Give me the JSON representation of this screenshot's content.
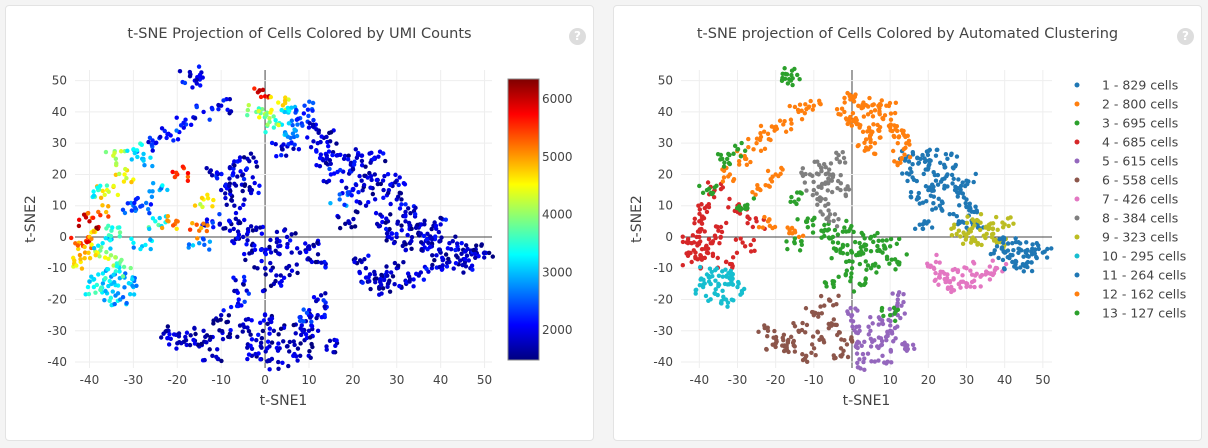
{
  "chart_data": [
    {
      "type": "scatter",
      "title": "t-SNE Projection of Cells Colored by UMI Counts",
      "xlabel": "t-SNE1",
      "ylabel": "t-SNE2",
      "xlim": [
        -43.3,
        51.7
      ],
      "ylim": [
        -41.9,
        53.4
      ],
      "xticks": [
        -40,
        -30,
        -20,
        -10,
        0,
        10,
        20,
        30,
        40,
        50
      ],
      "yticks": [
        -40,
        -30,
        -20,
        -10,
        0,
        10,
        20,
        30,
        40,
        50
      ],
      "grid": true,
      "color_by": "umi",
      "colorscale": "jet",
      "colorbar": {
        "range": [
          1480,
          6350
        ],
        "ticks": [
          2000,
          3000,
          4000,
          5000,
          6000
        ]
      }
    },
    {
      "type": "scatter",
      "title": "t-SNE projection of Cells Colored by Automated Clustering",
      "xlabel": "t-SNE1",
      "ylabel": "t-SNE2",
      "xlim": [
        -44.8,
        52.4
      ],
      "ylim": [
        -41.9,
        53.4
      ],
      "xticks": [
        -40,
        -30,
        -20,
        -10,
        0,
        10,
        20,
        30,
        40,
        50
      ],
      "yticks": [
        -40,
        -30,
        -20,
        -10,
        0,
        10,
        20,
        30,
        40,
        50
      ],
      "grid": true,
      "color_by": "cluster",
      "legend_position": "right"
    }
  ],
  "clusters": [
    {
      "label": "1 - 829 cells",
      "color": "#1f77b4",
      "points": [
        [
          18,
          25,
          1800
        ],
        [
          20,
          22,
          1900
        ],
        [
          22,
          26,
          1800
        ],
        [
          25,
          20,
          1700
        ],
        [
          27,
          15,
          1800
        ],
        [
          30,
          12,
          1900
        ],
        [
          32,
          8,
          1800
        ],
        [
          20,
          15,
          2000
        ],
        [
          23,
          10,
          1800
        ],
        [
          28,
          5,
          1700
        ],
        [
          15,
          20,
          2100
        ],
        [
          25,
          25,
          1800
        ],
        [
          30,
          18,
          1900
        ],
        [
          33,
          3,
          1800
        ],
        [
          22,
          18,
          1800
        ],
        [
          17,
          12,
          2600
        ],
        [
          14,
          25,
          1900
        ],
        [
          19,
          5,
          1800
        ]
      ]
    },
    {
      "label": "2 - 800 cells",
      "color": "#ff7f0e",
      "points": [
        [
          0,
          45,
          5800
        ],
        [
          3,
          43,
          4500
        ],
        [
          5,
          40,
          3200
        ],
        [
          8,
          38,
          2500
        ],
        [
          2,
          35,
          3500
        ],
        [
          10,
          35,
          2000
        ],
        [
          12,
          30,
          1900
        ],
        [
          6,
          30,
          2200
        ],
        [
          14,
          32,
          1800
        ],
        [
          -2,
          40,
          3800
        ],
        [
          4,
          28,
          2000
        ],
        [
          9,
          42,
          2400
        ],
        [
          13,
          25,
          1800
        ],
        [
          1,
          38,
          4200
        ],
        [
          7,
          34,
          2800
        ]
      ]
    },
    {
      "label": "3 - 695 cells",
      "color": "#2ca02c",
      "points": [
        [
          -5,
          0,
          1800
        ],
        [
          -3,
          -5,
          1800
        ],
        [
          0,
          -10,
          1900
        ],
        [
          2,
          -15,
          1800
        ],
        [
          5,
          -10,
          1700
        ],
        [
          -8,
          2,
          1900
        ],
        [
          -12,
          5,
          2100
        ],
        [
          8,
          -5,
          1800
        ],
        [
          10,
          -3,
          1800
        ],
        [
          -15,
          -2,
          2800
        ],
        [
          5,
          0,
          1800
        ],
        [
          0,
          -5,
          1800
        ],
        [
          -5,
          -15,
          1900
        ],
        [
          12,
          -8,
          1800
        ],
        [
          -2,
          3,
          1800
        ],
        [
          3,
          -3,
          1900
        ]
      ]
    },
    {
      "label": "4 - 685 cells",
      "color": "#d62728",
      "points": [
        [
          -42,
          -2,
          5500
        ],
        [
          -40,
          0,
          4800
        ],
        [
          -38,
          -5,
          4200
        ],
        [
          -35,
          2,
          3600
        ],
        [
          -38,
          8,
          5200
        ],
        [
          -36,
          15,
          4500
        ],
        [
          -40,
          5,
          6000
        ],
        [
          -33,
          -8,
          3800
        ],
        [
          -28,
          -3,
          3000
        ],
        [
          -25,
          5,
          3400
        ],
        [
          -30,
          10,
          2600
        ],
        [
          -42,
          -8,
          4600
        ],
        [
          -37,
          -2,
          3200
        ],
        [
          -41,
          -5,
          5000
        ]
      ]
    },
    {
      "label": "5 - 615 cells",
      "color": "#9467bd",
      "points": [
        [
          0,
          -25,
          1800
        ],
        [
          2,
          -30,
          1700
        ],
        [
          5,
          -35,
          1800
        ],
        [
          8,
          -38,
          1700
        ],
        [
          10,
          -30,
          1800
        ],
        [
          12,
          -25,
          1900
        ],
        [
          14,
          -35,
          1800
        ],
        [
          3,
          -40,
          1700
        ],
        [
          7,
          -28,
          1800
        ],
        [
          12,
          -20,
          2000
        ],
        [
          1,
          -35,
          1800
        ],
        [
          9,
          -33,
          1700
        ]
      ]
    },
    {
      "label": "6 - 558 cells",
      "color": "#8c564b",
      "points": [
        [
          -22,
          -30,
          1800
        ],
        [
          -18,
          -33,
          1700
        ],
        [
          -15,
          -35,
          1800
        ],
        [
          -12,
          -38,
          1700
        ],
        [
          -8,
          -32,
          1800
        ],
        [
          -5,
          -28,
          1900
        ],
        [
          -3,
          -38,
          1700
        ],
        [
          -10,
          -25,
          1800
        ],
        [
          -6,
          -20,
          2100
        ],
        [
          -14,
          -30,
          1800
        ],
        [
          -2,
          -33,
          1800
        ],
        [
          -20,
          -34,
          1700
        ]
      ]
    },
    {
      "label": "7 - 426 cells",
      "color": "#e377c2",
      "points": [
        [
          22,
          -8,
          1800
        ],
        [
          25,
          -12,
          1800
        ],
        [
          28,
          -15,
          1700
        ],
        [
          32,
          -14,
          1800
        ],
        [
          35,
          -12,
          1800
        ],
        [
          38,
          -10,
          1900
        ],
        [
          30,
          -10,
          1800
        ],
        [
          26,
          -16,
          1700
        ],
        [
          23,
          -13,
          2000
        ]
      ]
    },
    {
      "label": "8 - 384 cells",
      "color": "#7f7f7f",
      "points": [
        [
          -8,
          22,
          1800
        ],
        [
          -5,
          20,
          1900
        ],
        [
          -3,
          15,
          1800
        ],
        [
          -10,
          15,
          1800
        ],
        [
          -7,
          10,
          1700
        ],
        [
          -4,
          25,
          1800
        ],
        [
          -11,
          20,
          2000
        ],
        [
          -6,
          5,
          1800
        ],
        [
          -7,
          17,
          1800
        ]
      ]
    },
    {
      "label": "9 - 323 cells",
      "color": "#bcbd22",
      "points": [
        [
          30,
          0,
          1800
        ],
        [
          33,
          -2,
          1700
        ],
        [
          35,
          3,
          1800
        ],
        [
          37,
          1,
          1800
        ],
        [
          40,
          4,
          1900
        ],
        [
          32,
          5,
          1800
        ],
        [
          38,
          -2,
          1800
        ],
        [
          28,
          2,
          1800
        ]
      ]
    },
    {
      "label": "10 - 295 cells",
      "color": "#17becf",
      "points": [
        [
          -38,
          -12,
          3200
        ],
        [
          -35,
          -15,
          3000
        ],
        [
          -32,
          -13,
          2900
        ],
        [
          -36,
          -18,
          3100
        ],
        [
          -33,
          -20,
          2800
        ],
        [
          -30,
          -16,
          3000
        ],
        [
          -39,
          -16,
          3300
        ],
        [
          -34,
          -11,
          3500
        ]
      ]
    },
    {
      "label": "11 - 264 cells",
      "color": "#1f77b4",
      "points": [
        [
          38,
          -3,
          1800
        ],
        [
          40,
          -5,
          1700
        ],
        [
          42,
          -8,
          1800
        ],
        [
          44,
          -4,
          1800
        ],
        [
          46,
          -6,
          1700
        ],
        [
          48,
          -4,
          1800
        ],
        [
          50,
          -5,
          1800
        ],
        [
          42,
          -2,
          1900
        ],
        [
          45,
          -9,
          1800
        ]
      ]
    },
    {
      "label": "12 - 162 cells",
      "color": "#ff7f0e",
      "points": [
        [
          -32,
          20,
          4500
        ],
        [
          -28,
          25,
          3000
        ],
        [
          -25,
          30,
          2200
        ],
        [
          -22,
          33,
          1900
        ],
        [
          -18,
          36,
          2400
        ],
        [
          -14,
          40,
          2000
        ],
        [
          -10,
          42,
          1900
        ],
        [
          -20,
          20,
          5600
        ],
        [
          -24,
          15,
          3000
        ],
        [
          -22,
          5,
          5000
        ],
        [
          -15,
          2,
          5200
        ]
      ]
    },
    {
      "label": "13 - 127 cells",
      "color": "#2ca02c",
      "points": [
        [
          -38,
          15,
          3500
        ],
        [
          -34,
          25,
          4000
        ],
        [
          -30,
          28,
          3200
        ],
        [
          -17,
          52,
          1900
        ],
        [
          -16,
          50,
          2000
        ],
        [
          -28,
          10,
          2400
        ],
        [
          10,
          -25,
          2100
        ],
        [
          -14,
          12,
          4500
        ]
      ]
    }
  ]
}
